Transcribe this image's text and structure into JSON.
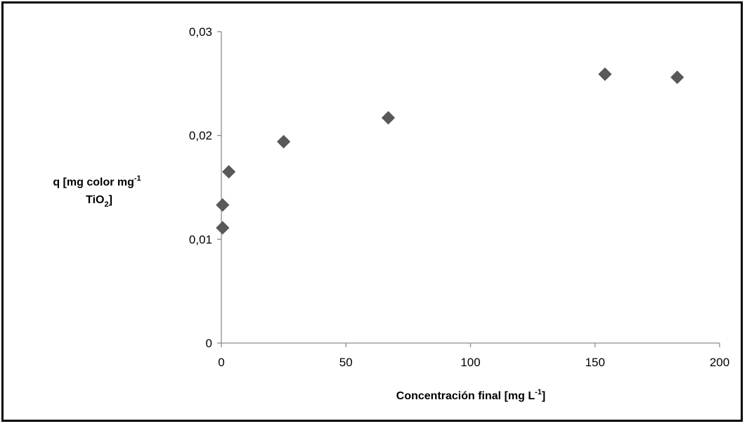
{
  "chart_data": {
    "type": "scatter",
    "xlabel": "Concentración final [mg L",
    "xlabel_sup": "-1",
    "xlabel_end": "]",
    "ylabel": {
      "line1": "q [mg color  mg",
      "line1_sup": "-1",
      "line2": "TiO",
      "line2_sub": "2",
      "line2_end": "]"
    },
    "xlim": [
      0,
      200
    ],
    "ylim": [
      0,
      0.03
    ],
    "x_ticks": [
      0,
      50,
      100,
      150,
      200
    ],
    "y_ticks": [
      0,
      0.01,
      0.02,
      0.03
    ],
    "x_tick_labels": [
      "0",
      "50",
      "100",
      "150",
      "200"
    ],
    "y_tick_labels": [
      "0",
      "0,01",
      "0,02",
      "0,03"
    ],
    "grid": false,
    "legend": "none",
    "marker": "diamond",
    "marker_color": "#595959",
    "points": [
      {
        "x": 0.5,
        "y": 0.0111
      },
      {
        "x": 0.5,
        "y": 0.0133
      },
      {
        "x": 3,
        "y": 0.0165
      },
      {
        "x": 25,
        "y": 0.0194
      },
      {
        "x": 67,
        "y": 0.0217
      },
      {
        "x": 154,
        "y": 0.0259
      },
      {
        "x": 183,
        "y": 0.0256
      }
    ]
  }
}
